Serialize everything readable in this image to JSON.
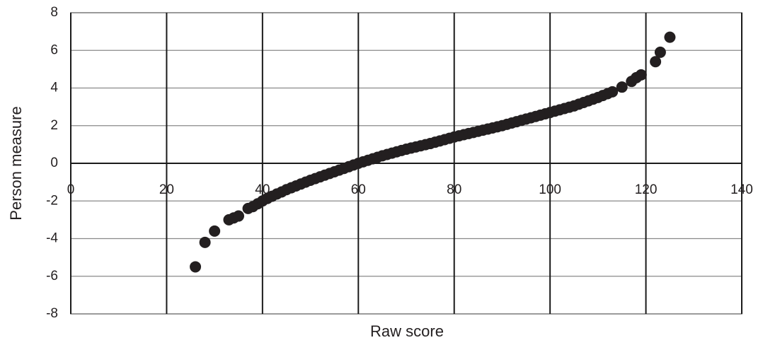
{
  "chart_data": {
    "type": "scatter",
    "x_label": "Raw score",
    "y_label": "Person measure",
    "color": "#231f20",
    "grid": true,
    "xlim": [
      0,
      140
    ],
    "xticks": [
      0,
      20,
      40,
      60,
      80,
      100,
      120,
      140
    ],
    "ylim": [
      -8,
      8
    ],
    "yticks": [
      -8,
      -6,
      -4,
      -2,
      0,
      2,
      4,
      6,
      8
    ],
    "x": [
      26,
      28,
      30,
      33,
      34,
      35,
      37,
      38,
      39,
      40,
      41,
      42,
      43,
      44,
      45,
      46,
      47,
      48,
      49,
      50,
      51,
      52,
      53,
      54,
      55,
      56,
      57,
      58,
      59,
      60,
      61,
      62,
      63,
      64,
      65,
      66,
      67,
      68,
      69,
      70,
      71,
      72,
      73,
      74,
      75,
      76,
      77,
      78,
      79,
      80,
      81,
      82,
      83,
      84,
      85,
      86,
      87,
      88,
      89,
      90,
      91,
      92,
      93,
      94,
      95,
      96,
      97,
      98,
      99,
      100,
      101,
      102,
      103,
      104,
      105,
      106,
      107,
      108,
      109,
      110,
      111,
      112,
      113,
      115,
      117,
      118,
      119,
      122,
      123,
      125
    ],
    "values": [
      -5.5,
      -4.2,
      -3.6,
      -3.0,
      -2.9,
      -2.8,
      -2.4,
      -2.3,
      -2.15,
      -2.0,
      -1.87,
      -1.75,
      -1.63,
      -1.52,
      -1.4,
      -1.3,
      -1.2,
      -1.1,
      -1.0,
      -0.9,
      -0.81,
      -0.72,
      -0.63,
      -0.54,
      -0.45,
      -0.36,
      -0.27,
      -0.18,
      -0.09,
      0.0,
      0.08,
      0.16,
      0.24,
      0.32,
      0.4,
      0.47,
      0.54,
      0.61,
      0.68,
      0.75,
      0.81,
      0.87,
      0.93,
      0.99,
      1.05,
      1.12,
      1.19,
      1.26,
      1.33,
      1.4,
      1.46,
      1.52,
      1.58,
      1.64,
      1.7,
      1.76,
      1.82,
      1.88,
      1.94,
      2.0,
      2.07,
      2.14,
      2.21,
      2.28,
      2.35,
      2.42,
      2.49,
      2.56,
      2.63,
      2.7,
      2.77,
      2.84,
      2.91,
      2.98,
      3.05,
      3.14,
      3.23,
      3.32,
      3.41,
      3.5,
      3.6,
      3.7,
      3.8,
      4.05,
      4.35,
      4.55,
      4.7,
      5.4,
      5.9,
      6.7
    ]
  }
}
